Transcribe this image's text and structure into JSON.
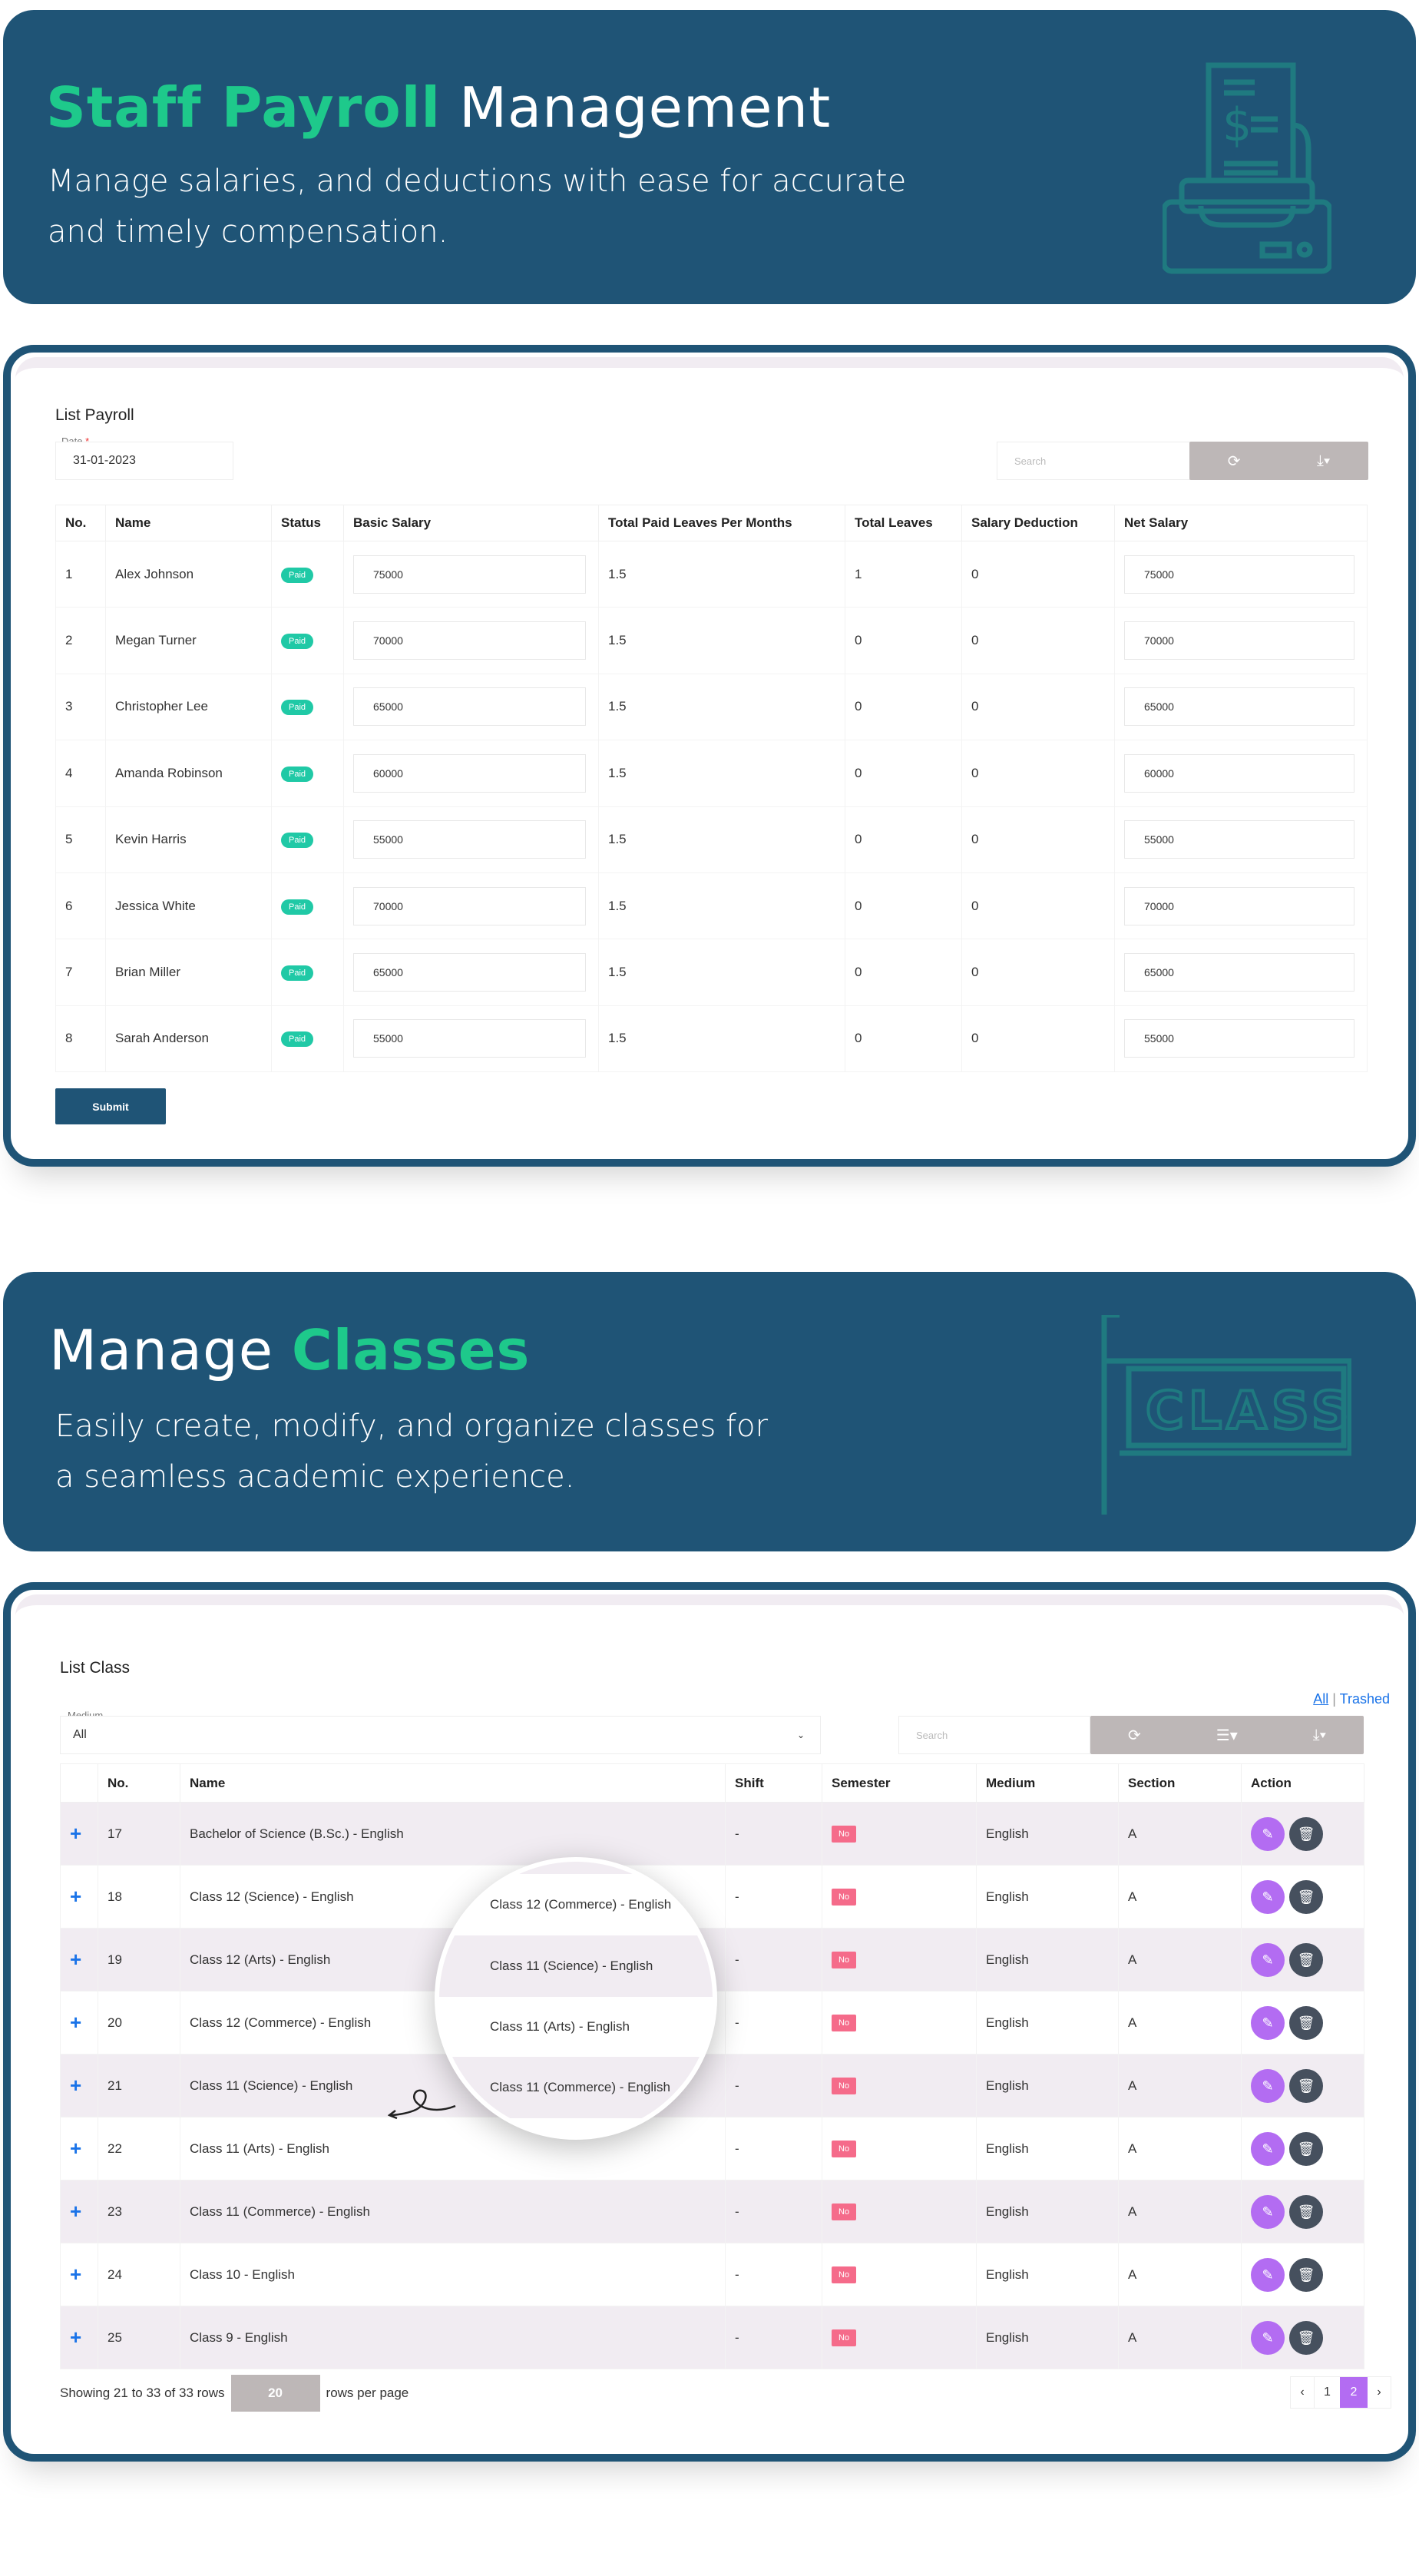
{
  "payroll_banner": {
    "title_highlight": "Staff Payroll",
    "title_rest": "Management",
    "subtitle_line1": "Manage salaries, and  deductions with ease for accurate",
    "subtitle_line2": "and timely compensation.",
    "icon": "payroll-printer-icon"
  },
  "payroll": {
    "title": "List Payroll",
    "date_label": "Date",
    "required_mark": "*",
    "date_value": "31-01-2023",
    "search_placeholder": "Search",
    "refresh_icon": "refresh-icon",
    "export_icon": "download-icon",
    "columns": [
      "No.",
      "Name",
      "Status",
      "Basic Salary",
      "Total Paid Leaves Per Months",
      "Total Leaves",
      "Salary Deduction",
      "Net Salary"
    ],
    "rows": [
      {
        "no": "1",
        "name": "Alex Johnson",
        "status": "Paid",
        "basic": "75000",
        "paid_leaves": "1.5",
        "leaves": "1",
        "deduction": "0",
        "net": "75000"
      },
      {
        "no": "2",
        "name": "Megan Turner",
        "status": "Paid",
        "basic": "70000",
        "paid_leaves": "1.5",
        "leaves": "0",
        "deduction": "0",
        "net": "70000"
      },
      {
        "no": "3",
        "name": "Christopher Lee",
        "status": "Paid",
        "basic": "65000",
        "paid_leaves": "1.5",
        "leaves": "0",
        "deduction": "0",
        "net": "65000"
      },
      {
        "no": "4",
        "name": "Amanda Robinson",
        "status": "Paid",
        "basic": "60000",
        "paid_leaves": "1.5",
        "leaves": "0",
        "deduction": "0",
        "net": "60000"
      },
      {
        "no": "5",
        "name": "Kevin Harris",
        "status": "Paid",
        "basic": "55000",
        "paid_leaves": "1.5",
        "leaves": "0",
        "deduction": "0",
        "net": "55000"
      },
      {
        "no": "6",
        "name": "Jessica White",
        "status": "Paid",
        "basic": "70000",
        "paid_leaves": "1.5",
        "leaves": "0",
        "deduction": "0",
        "net": "70000"
      },
      {
        "no": "7",
        "name": "Brian Miller",
        "status": "Paid",
        "basic": "65000",
        "paid_leaves": "1.5",
        "leaves": "0",
        "deduction": "0",
        "net": "65000"
      },
      {
        "no": "8",
        "name": "Sarah Anderson",
        "status": "Paid",
        "basic": "55000",
        "paid_leaves": "1.5",
        "leaves": "0",
        "deduction": "0",
        "net": "55000"
      }
    ],
    "submit_label": "Submit"
  },
  "classes_banner": {
    "title_rest": "Manage",
    "title_highlight": "Classes",
    "subtitle_line1": "Easily create, modify, and organize classes for",
    "subtitle_line2": "a seamless academic experience.",
    "icon_text": "CLASS"
  },
  "classes": {
    "title": "List Class",
    "link_all": "All",
    "link_sep": "|",
    "link_trashed": "Trashed",
    "medium_label": "Medium",
    "medium_value": "All",
    "search_placeholder": "Search",
    "columns": [
      "",
      "No.",
      "Name",
      "Shift",
      "Semester",
      "Medium",
      "Section",
      "Action"
    ],
    "rows": [
      {
        "no": "17",
        "name": "Bachelor of Science (B.Sc.) - English",
        "shift": "-",
        "semester": "No",
        "medium": "English",
        "section": "A"
      },
      {
        "no": "18",
        "name": "Class 12 (Science) - English",
        "shift": "-",
        "semester": "No",
        "medium": "English",
        "section": "A"
      },
      {
        "no": "19",
        "name": "Class 12 (Arts) - English",
        "shift": "-",
        "semester": "No",
        "medium": "English",
        "section": "A"
      },
      {
        "no": "20",
        "name": "Class 12 (Commerce) - English",
        "shift": "-",
        "semester": "No",
        "medium": "English",
        "section": "A"
      },
      {
        "no": "21",
        "name": "Class 11 (Science) - English",
        "shift": "-",
        "semester": "No",
        "medium": "English",
        "section": "A"
      },
      {
        "no": "22",
        "name": "Class 11 (Arts) - English",
        "shift": "-",
        "semester": "No",
        "medium": "English",
        "section": "A"
      },
      {
        "no": "23",
        "name": "Class 11 (Commerce) - English",
        "shift": "-",
        "semester": "No",
        "medium": "English",
        "section": "A"
      },
      {
        "no": "24",
        "name": "Class 10 - English",
        "shift": "-",
        "semester": "No",
        "medium": "English",
        "section": "A"
      },
      {
        "no": "25",
        "name": "Class 9 - English",
        "shift": "-",
        "semester": "No",
        "medium": "English",
        "section": "A"
      }
    ],
    "magnifier_rows": [
      "Class 12 (Commerce) - English",
      "Class 11 (Science) - English",
      "Class 11 (Arts) - English",
      "Class 11 (Commerce) - English"
    ],
    "footer_showing": "Showing 21 to 33 of 33 rows",
    "page_size": "20",
    "rows_per_page": "rows per page",
    "pagination": {
      "prev": "‹",
      "pages": [
        "1",
        "2"
      ],
      "active": "2",
      "next": "›"
    }
  },
  "colors": {
    "banner": "#1f5476",
    "accent_green": "#1ec98b",
    "paid": "#20c9a6",
    "no_badge": "#f56b8a",
    "edit": "#b36cf2",
    "delete": "#46505e",
    "active_page": "#b36cf2"
  }
}
